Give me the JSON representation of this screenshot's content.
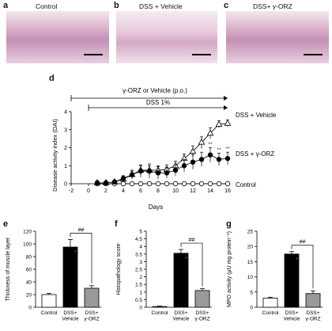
{
  "panels": {
    "a": {
      "letter": "a",
      "title": "Control"
    },
    "b": {
      "letter": "b",
      "title": "DSS + Vehicle"
    },
    "c": {
      "letter": "c",
      "title": "DSS+ γ-ORZ"
    },
    "d": {
      "letter": "d"
    },
    "e": {
      "letter": "e"
    },
    "f": {
      "letter": "f"
    },
    "g": {
      "letter": "g"
    }
  },
  "panel_d": {
    "treatment_label": "γ-ORZ or Vehicle (p.o.)",
    "dss_label": "DSS 1%",
    "ylabel": "Disease activity index (DAI)",
    "xlabel": "Days",
    "series_labels": [
      "DSS + Vehicle",
      "DSS + γ-ORZ",
      "Control"
    ],
    "significance": [
      "*",
      "**",
      "*",
      "**",
      "**",
      "**"
    ]
  },
  "chart_data": [
    {
      "type": "line",
      "panel": "d",
      "xlabel": "Days",
      "ylabel": "Disease activity index (DAI)",
      "xlim": [
        -2,
        16
      ],
      "ylim": [
        0,
        4
      ],
      "xticks": [
        -2,
        0,
        2,
        4,
        6,
        8,
        10,
        12,
        14,
        16
      ],
      "yticks": [
        0,
        1,
        2,
        3,
        4
      ],
      "series": [
        {
          "name": "DSS + Vehicle",
          "marker": "open-triangle",
          "x": [
            1,
            2,
            3,
            4,
            5,
            6,
            7,
            8,
            9,
            10,
            11,
            12,
            13,
            14,
            15,
            16
          ],
          "y": [
            0.05,
            0.05,
            0.1,
            0.25,
            0.5,
            0.75,
            0.75,
            0.75,
            0.8,
            1.0,
            1.4,
            1.8,
            2.3,
            2.8,
            3.3,
            3.35
          ],
          "err": [
            0,
            0,
            0.05,
            0.15,
            0.2,
            0.25,
            0.25,
            0.25,
            0.25,
            0.25,
            0.25,
            0.3,
            0.3,
            0.3,
            0.2,
            0.2
          ]
        },
        {
          "name": "DSS + γ-ORZ",
          "marker": "filled-circle",
          "x": [
            1,
            2,
            3,
            4,
            5,
            6,
            7,
            8,
            9,
            10,
            11,
            12,
            13,
            14,
            15,
            16
          ],
          "y": [
            0.05,
            0.05,
            0.1,
            0.3,
            0.5,
            0.7,
            0.7,
            0.6,
            0.6,
            0.75,
            1.0,
            1.2,
            1.35,
            1.6,
            1.35,
            1.4
          ],
          "err": [
            0,
            0,
            0.05,
            0.15,
            0.25,
            0.35,
            0.4,
            0.35,
            0.3,
            0.3,
            0.35,
            0.4,
            0.4,
            0.4,
            0.35,
            0.35
          ]
        },
        {
          "name": "Control",
          "marker": "open-circle",
          "x": [
            1,
            2,
            3,
            4,
            5,
            6,
            7,
            8,
            9,
            10,
            11,
            12,
            13,
            14,
            15,
            16
          ],
          "y": [
            0,
            0,
            0,
            0,
            0,
            0,
            0,
            0,
            0,
            0,
            0,
            0,
            0,
            0,
            0,
            0
          ],
          "err": [
            0,
            0,
            0,
            0,
            0,
            0,
            0,
            0,
            0,
            0,
            0,
            0,
            0,
            0,
            0,
            0
          ]
        }
      ]
    },
    {
      "type": "bar",
      "panel": "e",
      "categories": [
        "Control",
        "DSS+\nVehicle",
        "DSS+\nγ-ORZ"
      ],
      "values": [
        20,
        95,
        30
      ],
      "errors": [
        2,
        12,
        4
      ],
      "colors": [
        "#ffffff",
        "#000000",
        "#999999"
      ],
      "ylabel": "Thickness of muscle layer",
      "ylim": [
        0,
        120
      ],
      "yticks": [
        0,
        20,
        40,
        60,
        80,
        100,
        120
      ],
      "annotations": [
        "**",
        "##"
      ]
    },
    {
      "type": "bar",
      "panel": "f",
      "categories": [
        "Control",
        "DSS+\nVehicle",
        "DSS+\nγ-ORZ"
      ],
      "values": [
        0.05,
        3.55,
        1.1
      ],
      "errors": [
        0.03,
        0.25,
        0.12
      ],
      "colors": [
        "#ffffff",
        "#000000",
        "#999999"
      ],
      "ylabel": "Histopathology score",
      "ylim": [
        0,
        5
      ],
      "yticks": [
        0,
        0.5,
        1,
        1.5,
        2,
        2.5,
        3,
        3.5,
        4,
        4.5,
        5
      ],
      "annotations": [
        "**",
        "##"
      ]
    },
    {
      "type": "bar",
      "panel": "g",
      "categories": [
        "Control",
        "DSS+\nVehicle",
        "DSS+\nγ-ORZ"
      ],
      "values": [
        3,
        17.5,
        4.5
      ],
      "errors": [
        0.3,
        0.8,
        0.9
      ],
      "colors": [
        "#ffffff",
        "#000000",
        "#999999"
      ],
      "ylabel": "MPO activity  (μU mg protein⁻¹)",
      "ylim": [
        0,
        25
      ],
      "yticks": [
        0,
        5,
        10,
        15,
        20,
        25
      ],
      "annotations": [
        "**",
        "##"
      ]
    }
  ]
}
